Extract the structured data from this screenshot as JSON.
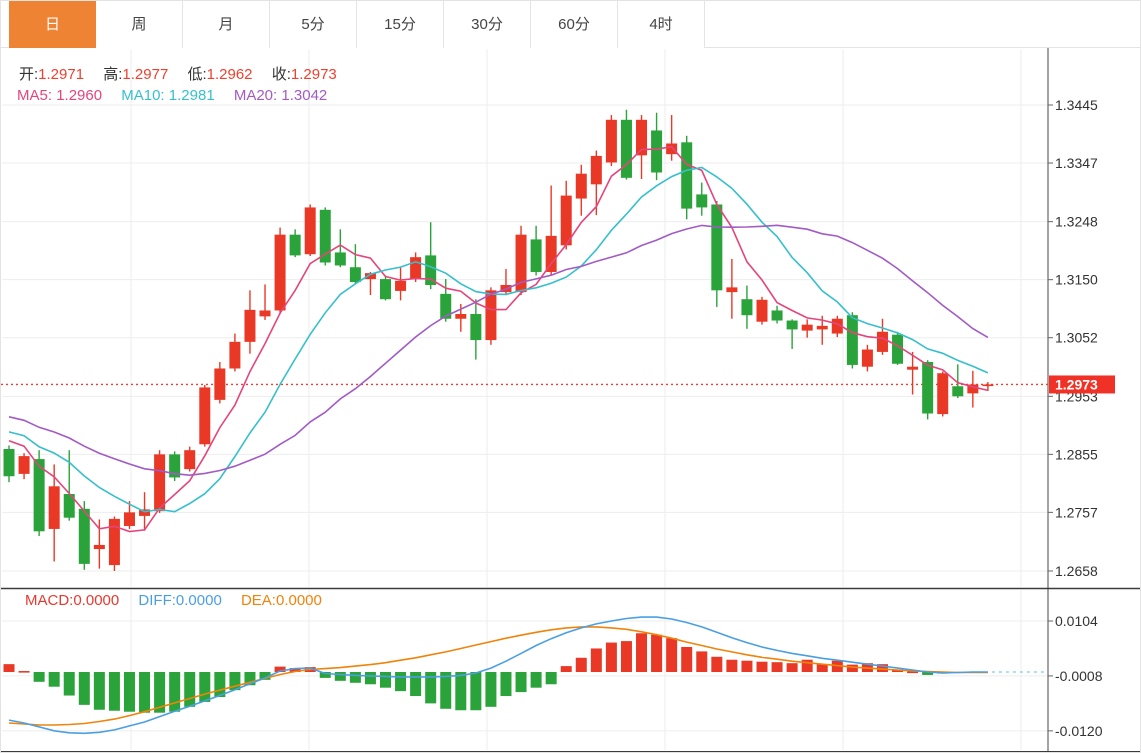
{
  "tabs": {
    "items": [
      {
        "label": "日",
        "selected": true
      },
      {
        "label": "周",
        "selected": false
      },
      {
        "label": "月",
        "selected": false
      },
      {
        "label": "5分",
        "selected": false
      },
      {
        "label": "15分",
        "selected": false
      },
      {
        "label": "30分",
        "selected": false
      },
      {
        "label": "60分",
        "selected": false
      },
      {
        "label": "4时",
        "selected": false
      }
    ]
  },
  "main_legend": {
    "items": [
      {
        "label": "开:",
        "value": "1.2971"
      },
      {
        "label": "高:",
        "value": "1.2977"
      },
      {
        "label": "低:",
        "value": "1.2962"
      },
      {
        "label": "收:",
        "value": "1.2973"
      }
    ],
    "ma_items": [
      {
        "label": "MA5:",
        "value": "1.2960",
        "color": "#e5457c"
      },
      {
        "label": "MA10:",
        "value": "1.2981",
        "color": "#36bfcd"
      },
      {
        "label": "MA20:",
        "value": "1.3042",
        "color": "#a25ac6"
      }
    ]
  },
  "macd_legend": {
    "items": [
      {
        "label": "MACD:",
        "value": "0.0000",
        "color": "#e8392f"
      },
      {
        "label": "DIFF:",
        "value": "0.0000",
        "color": "#4a9fe3"
      },
      {
        "label": "DEA:",
        "value": "0.0000",
        "color": "#f0830a"
      }
    ]
  },
  "price_axis": {
    "ticks": [
      "1.3445",
      "1.3347",
      "1.3248",
      "1.3150",
      "1.3052",
      "1.2953",
      "1.2855",
      "1.2757",
      "1.2658"
    ],
    "badge": "1.2973"
  },
  "macd_axis": {
    "ticks": [
      "0.0104",
      "-0.0008",
      "-0.0120"
    ]
  },
  "colors": {
    "up_red": "#ea3826",
    "down_green": "#2aa43a",
    "tab_selected": "#ef8334",
    "ma5_pink": "#e5457c",
    "ma10_cyan": "#36bfcd",
    "ma20_purple": "#a25ac6",
    "diff_blue": "#4a9fe3",
    "dea_orange": "#f0830a",
    "last_price_line": "#f23d2e",
    "badge_bg": "#f03126",
    "axis_text": "#333333",
    "grid": "#ededed",
    "zero_ext_dash": "#8fd8e8"
  },
  "chart_data": [
    {
      "type": "candlestick",
      "series_name": "price",
      "ylabel_ticks": [
        1.3445,
        1.3347,
        1.3248,
        1.315,
        1.3052,
        1.2953,
        1.2855,
        1.2757,
        1.2658
      ],
      "ylim": [
        1.2658,
        1.3445
      ],
      "last_price": 1.2973,
      "legend_ohlc": {
        "open": 1.2971,
        "high": 1.2977,
        "low": 1.2962,
        "close": 1.2973
      },
      "ma_periods": [
        5,
        10,
        20
      ],
      "ma_last_values": {
        "ma5": 1.296,
        "ma10": 1.2981,
        "ma20": 1.3042
      },
      "ma_seed_closes": [
        1.297,
        1.2964,
        1.2958,
        1.2952,
        1.2946,
        1.294,
        1.2935,
        1.293,
        1.2925,
        1.292,
        1.2916,
        1.2912,
        1.2908,
        1.2904,
        1.29,
        1.2897,
        1.2894,
        1.2891,
        1.2889
      ],
      "candles_ohlc": [
        [
          1.2864,
          1.287,
          1.2808,
          1.2818
        ],
        [
          1.2822,
          1.2857,
          1.2813,
          1.2852
        ],
        [
          1.2847,
          1.2862,
          1.2717,
          1.2725
        ],
        [
          1.2729,
          1.2838,
          1.2674,
          1.2801
        ],
        [
          1.2788,
          1.2862,
          1.2743,
          1.2748
        ],
        [
          1.2763,
          1.2776,
          1.266,
          1.267
        ],
        [
          1.2695,
          1.2745,
          1.2662,
          1.2702
        ],
        [
          1.2668,
          1.275,
          1.2658,
          1.2746
        ],
        [
          1.2734,
          1.2776,
          1.2729,
          1.2757
        ],
        [
          1.2751,
          1.2791,
          1.2726,
          1.2762
        ],
        [
          1.2759,
          1.2862,
          1.2756,
          1.2855
        ],
        [
          1.2855,
          1.286,
          1.281,
          1.2816
        ],
        [
          1.283,
          1.2868,
          1.2826,
          1.2862
        ],
        [
          1.2872,
          1.2972,
          1.2868,
          1.2968
        ],
        [
          1.2947,
          1.3011,
          1.2941,
          1.3
        ],
        [
          1.3,
          1.3059,
          1.2995,
          1.3045
        ],
        [
          1.3045,
          1.3132,
          1.3025,
          1.3099
        ],
        [
          1.3088,
          1.3142,
          1.3082,
          1.3098
        ],
        [
          1.3098,
          1.3238,
          1.3092,
          1.3226
        ],
        [
          1.3226,
          1.3235,
          1.3188,
          1.3191
        ],
        [
          1.3193,
          1.3277,
          1.319,
          1.3272
        ],
        [
          1.3268,
          1.3272,
          1.3174,
          1.3179
        ],
        [
          1.3196,
          1.3235,
          1.3171,
          1.3174
        ],
        [
          1.3171,
          1.321,
          1.3143,
          1.3146
        ],
        [
          1.3151,
          1.3163,
          1.3124,
          1.3161
        ],
        [
          1.3151,
          1.3157,
          1.3115,
          1.3117
        ],
        [
          1.3131,
          1.3171,
          1.3115,
          1.3148
        ],
        [
          1.3151,
          1.3196,
          1.3146,
          1.3188
        ],
        [
          1.3191,
          1.3247,
          1.3134,
          1.3141
        ],
        [
          1.3126,
          1.3151,
          1.3079,
          1.3084
        ],
        [
          1.3084,
          1.3109,
          1.3062,
          1.3092
        ],
        [
          1.3092,
          1.3117,
          1.3015,
          1.3048
        ],
        [
          1.3048,
          1.3137,
          1.304,
          1.3132
        ],
        [
          1.3129,
          1.3168,
          1.3124,
          1.3141
        ],
        [
          1.3129,
          1.3241,
          1.3124,
          1.3226
        ],
        [
          1.3218,
          1.3241,
          1.3157,
          1.3163
        ],
        [
          1.3163,
          1.3309,
          1.3157,
          1.3224
        ],
        [
          1.3208,
          1.3317,
          1.3201,
          1.3292
        ],
        [
          1.3287,
          1.3344,
          1.3258,
          1.3329
        ],
        [
          1.3311,
          1.3368,
          1.3259,
          1.3359
        ],
        [
          1.3348,
          1.3428,
          1.3342,
          1.342
        ],
        [
          1.342,
          1.3437,
          1.3319,
          1.3322
        ],
        [
          1.336,
          1.3428,
          1.332,
          1.342
        ],
        [
          1.3402,
          1.3432,
          1.3318,
          1.3331
        ],
        [
          1.3362,
          1.3428,
          1.3351,
          1.338
        ],
        [
          1.3382,
          1.3393,
          1.3252,
          1.327
        ],
        [
          1.3294,
          1.3314,
          1.3258,
          1.3272
        ],
        [
          1.3277,
          1.3283,
          1.3104,
          1.3132
        ],
        [
          1.3129,
          1.3185,
          1.3084,
          1.3137
        ],
        [
          1.3117,
          1.314,
          1.3067,
          1.309
        ],
        [
          1.3079,
          1.3121,
          1.3074,
          1.3116
        ],
        [
          1.3098,
          1.3106,
          1.3076,
          1.3081
        ],
        [
          1.3081,
          1.3083,
          1.3033,
          1.3066
        ],
        [
          1.3064,
          1.3083,
          1.3052,
          1.3074
        ],
        [
          1.3066,
          1.3089,
          1.304,
          1.3072
        ],
        [
          1.3059,
          1.3089,
          1.3053,
          1.3084
        ],
        [
          1.309,
          1.3095,
          1.3,
          1.3006
        ],
        [
          1.3003,
          1.304,
          1.2995,
          1.3032
        ],
        [
          1.3028,
          1.3084,
          1.3023,
          1.3062
        ],
        [
          1.3057,
          1.3062,
          1.3006,
          1.3008
        ],
        [
          1.2998,
          1.3028,
          1.2956,
          1.3003
        ],
        [
          1.3011,
          1.3014,
          1.2914,
          1.2924
        ],
        [
          1.2923,
          1.2995,
          1.2919,
          1.2992
        ],
        [
          1.297,
          1.3007,
          1.295,
          1.2953
        ],
        [
          1.2958,
          1.2996,
          1.2934,
          1.2973
        ],
        [
          1.2971,
          1.2977,
          1.2962,
          1.2973
        ]
      ]
    },
    {
      "type": "bar",
      "series_name": "macd",
      "ylabel_ticks": [
        0.0104,
        -0.0008,
        -0.012
      ],
      "ylim": [
        -0.012,
        0.0104
      ],
      "legend": {
        "macd": 0.0,
        "diff": 0.0,
        "dea": 0.0
      },
      "hist": [
        0.0016,
        0.0002,
        -0.002,
        -0.003,
        -0.0048,
        -0.0067,
        -0.0077,
        -0.0079,
        -0.0081,
        -0.0083,
        -0.0083,
        -0.0081,
        -0.0071,
        -0.0061,
        -0.0051,
        -0.0037,
        -0.0027,
        -0.0016,
        0.0011,
        0.0008,
        0.001,
        -0.0012,
        -0.0018,
        -0.0022,
        -0.0025,
        -0.0032,
        -0.0039,
        -0.0049,
        -0.0064,
        -0.0075,
        -0.0078,
        -0.0078,
        -0.0071,
        -0.0049,
        -0.0041,
        -0.0032,
        -0.0025,
        0.0012,
        0.0029,
        0.0048,
        0.006,
        0.0063,
        0.0079,
        0.0076,
        0.0069,
        0.0051,
        0.0042,
        0.0031,
        0.0025,
        0.0023,
        0.0021,
        0.002,
        0.0018,
        0.0025,
        0.0016,
        0.0023,
        0.0015,
        0.0018,
        0.0016,
        0.0005,
        0.0001,
        -0.0006,
        -0.0002,
        0.0,
        0.0,
        0.0
      ],
      "diff": [
        -0.0098,
        -0.0104,
        -0.0112,
        -0.012,
        -0.0124,
        -0.0125,
        -0.0123,
        -0.0118,
        -0.011,
        -0.0102,
        -0.0091,
        -0.008,
        -0.007,
        -0.0059,
        -0.0048,
        -0.0036,
        -0.0024,
        -0.0012,
        0.0002,
        0.0007,
        0.0008,
        -0.0003,
        -0.0005,
        -0.0007,
        -0.0008,
        -0.0009,
        -0.001,
        -0.001,
        -0.001,
        -0.0009,
        -0.0007,
        -0.0002,
        0.0008,
        0.0022,
        0.0038,
        0.0054,
        0.0068,
        0.008,
        0.009,
        0.0098,
        0.0104,
        0.0109,
        0.0112,
        0.0112,
        0.0108,
        0.0101,
        0.0092,
        0.0081,
        0.007,
        0.006,
        0.0051,
        0.0044,
        0.0038,
        0.0033,
        0.0028,
        0.0024,
        0.002,
        0.0016,
        0.0012,
        0.0008,
        0.0004,
        0.0,
        -0.0002,
        -0.0001,
        0.0,
        0.0
      ],
      "dea": [
        -0.0104,
        -0.0106,
        -0.0108,
        -0.0108,
        -0.0107,
        -0.0105,
        -0.0101,
        -0.0096,
        -0.0089,
        -0.0081,
        -0.0072,
        -0.0063,
        -0.0054,
        -0.0045,
        -0.0037,
        -0.0029,
        -0.0021,
        -0.0013,
        -0.0005,
        0.0001,
        0.0005,
        0.0007,
        0.0009,
        0.0012,
        0.0015,
        0.0019,
        0.0024,
        0.0029,
        0.0035,
        0.0041,
        0.0048,
        0.0055,
        0.0062,
        0.0069,
        0.0075,
        0.0081,
        0.0086,
        0.009,
        0.0092,
        0.0092,
        0.009,
        0.0087,
        0.0082,
        0.0076,
        0.0069,
        0.0061,
        0.0054,
        0.0047,
        0.0041,
        0.0035,
        0.003,
        0.0026,
        0.0022,
        0.0019,
        0.0016,
        0.0013,
        0.001,
        0.0008,
        0.0006,
        0.0004,
        0.0002,
        0.0001,
        0.0,
        -0.0001,
        -0.0001,
        -0.0001
      ]
    }
  ]
}
